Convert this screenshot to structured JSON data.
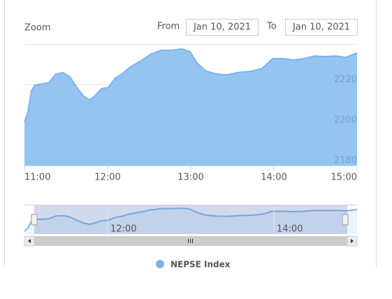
{
  "chart_data": {
    "type": "area",
    "range_selector": {
      "zoom": "Zoom",
      "from_label": "From",
      "from": "Jan 10, 2021",
      "to_label": "To",
      "to": "Jan 10, 2021"
    },
    "series": [
      {
        "name": "NEPSE Index",
        "color": "#7cb5ec",
        "x": [
          11.0,
          11.042,
          11.084,
          11.126,
          11.21,
          11.294,
          11.378,
          11.462,
          11.546,
          11.63,
          11.714,
          11.782,
          11.84,
          11.924,
          12.008,
          12.092,
          12.176,
          12.261,
          12.387,
          12.513,
          12.639,
          12.765,
          12.891,
          12.992,
          13.076,
          13.185,
          13.311,
          13.437,
          13.563,
          13.731,
          13.857,
          13.983,
          14.109,
          14.235,
          14.361,
          14.487,
          14.613,
          14.739,
          14.866,
          14.908,
          14.95,
          15.0
        ],
        "values": [
          2201.4,
          2206.6,
          2216.9,
          2219.7,
          2220.3,
          2221,
          2225.2,
          2225.9,
          2223.8,
          2218.6,
          2214.1,
          2212.4,
          2214.1,
          2217.9,
          2218.6,
          2223.1,
          2225.2,
          2228.3,
          2231.4,
          2234.8,
          2236.9,
          2236.9,
          2237.6,
          2236.2,
          2230.7,
          2226.6,
          2225.2,
          2224.8,
          2225.9,
          2226.6,
          2227.9,
          2232.8,
          2232.8,
          2232.1,
          2232.8,
          2234.1,
          2233.8,
          2234.1,
          2233.4,
          2234.1,
          2234.8,
          2235.5
        ]
      }
    ],
    "xlim": [
      11,
      15
    ],
    "xticks": [
      {
        "value": 11,
        "label": "11:00"
      },
      {
        "value": 12,
        "label": "12:00"
      },
      {
        "value": 13,
        "label": "13:00"
      },
      {
        "value": 14,
        "label": "14:00"
      },
      {
        "value": 15,
        "label": "15:00"
      }
    ],
    "ylim": [
      2180,
      2240
    ],
    "yticks": [
      2180,
      2200,
      2220
    ],
    "grid": true,
    "navigator_xticks": [
      {
        "value": 12,
        "label": "12:00"
      },
      {
        "value": 14,
        "label": "14:00"
      }
    ]
  }
}
